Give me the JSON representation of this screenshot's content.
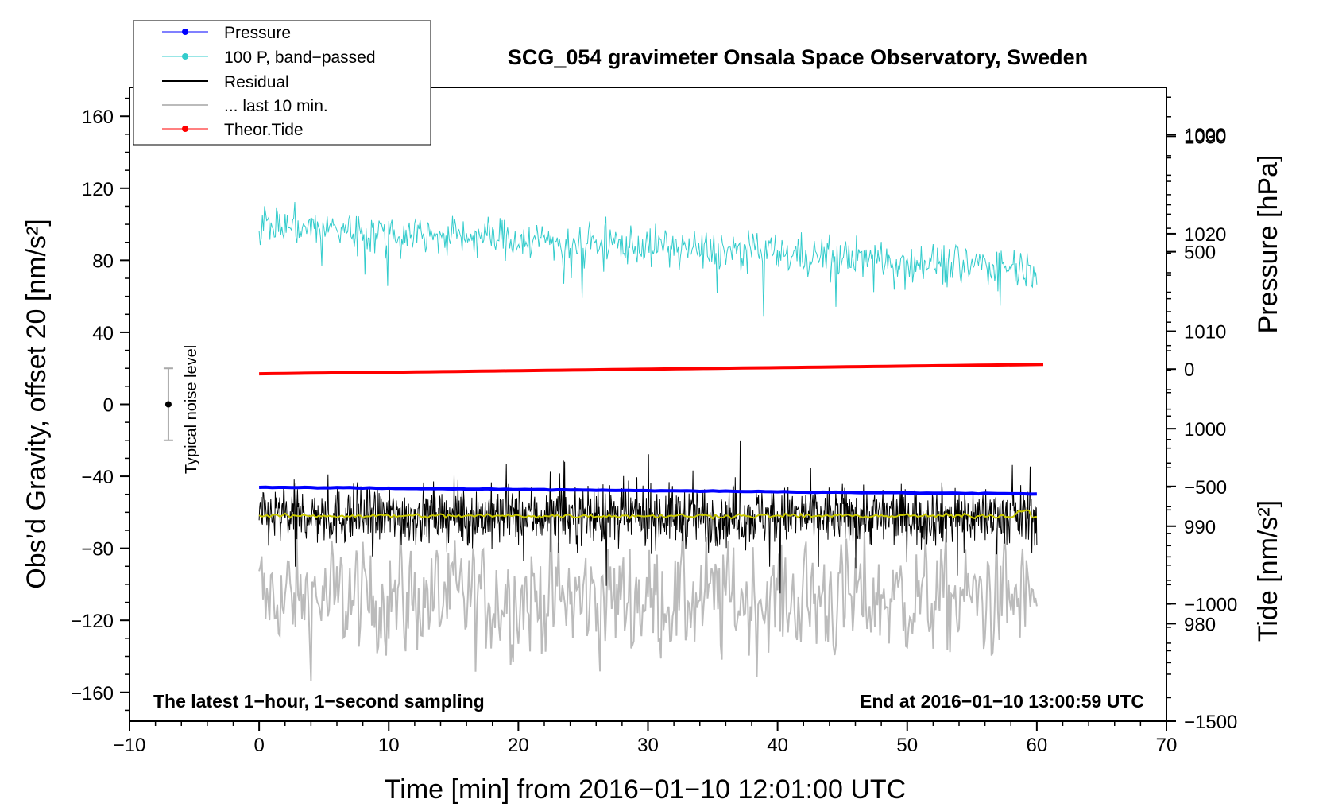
{
  "chart_data": {
    "type": "line",
    "title": "SCG_054 gravimeter Onsala Space Observatory, Sweden",
    "xlabel": "Time [min] from 2016−01−10 12:01:00 UTC",
    "ylabel_left": "Obs’d Gravity, offset 20 [nm/s²]",
    "ylabel_right_top": "Pressure [hPa]",
    "ylabel_right_bottom": "Tide [nm/s²]",
    "xlim": [
      -10,
      70
    ],
    "ylim_left": [
      -176,
      176
    ],
    "ylim_pressure": [
      970,
      1035
    ],
    "ylim_tide": [
      -1500,
      1200
    ],
    "x_ticks": [
      "−10",
      "0",
      "10",
      "20",
      "30",
      "40",
      "50",
      "60",
      "70"
    ],
    "x_tick_values": [
      -10,
      0,
      10,
      20,
      30,
      40,
      50,
      60,
      70
    ],
    "y_left_ticks": [
      "160",
      "120",
      "80",
      "40",
      "0",
      "−40",
      "−80",
      "−120",
      "−160"
    ],
    "y_left_tick_values": [
      160,
      120,
      80,
      40,
      0,
      -40,
      -80,
      -120,
      -160
    ],
    "y_pressure_ticks": [
      "1030",
      "1020",
      "1010",
      "1000",
      "990",
      "980"
    ],
    "y_pressure_tick_values": [
      1030,
      1020,
      1010,
      1000,
      990,
      980
    ],
    "y_tide_ticks": [
      "1000",
      "500",
      "0",
      "−500",
      "−1000",
      "−1500"
    ],
    "y_tide_tick_values": [
      1000,
      500,
      0,
      -500,
      -1000,
      -1500
    ],
    "note_left": "The latest 1−hour, 1−second sampling",
    "note_right": "End at 2016−01−10 13:00:59 UTC",
    "noise_label": "Typical noise level",
    "noise_bar": {
      "x": -7,
      "center": 0,
      "half_range": 20
    },
    "legend": [
      {
        "label": "Pressure",
        "color": "#0000ff",
        "marker": true
      },
      {
        "label": "100 P, band−passed",
        "color": "#33cccc",
        "marker": true
      },
      {
        "label": "Residual",
        "color": "#000000",
        "marker": false
      },
      {
        "label": "... last 10 min.",
        "color": "#bbbbbb",
        "marker": false
      },
      {
        "label": "Theor.Tide",
        "color": "#ff0000",
        "marker": true
      }
    ],
    "series": [
      {
        "name": "Pressure",
        "axis": "pressure",
        "color": "#0000ff",
        "start": 994.0,
        "end": 993.3
      },
      {
        "name": "100 P, band−passed",
        "axis": "left",
        "color": "#33cccc",
        "start_mean": 100,
        "end_mean": 76,
        "noise_amplitude": 10
      },
      {
        "name": "Residual",
        "axis": "left",
        "color": "#000000",
        "mean": -62,
        "noise_amplitude": 15
      },
      {
        "name": "Residual smoothed",
        "axis": "left",
        "color": "#c8c800",
        "mean": -62
      },
      {
        "name": "... last 10 min.",
        "axis": "left",
        "color": "#bbbbbb",
        "mean": -108,
        "noise_amplitude": 18
      },
      {
        "name": "Theor.Tide",
        "axis": "tide",
        "color": "#ff0000",
        "start": -20,
        "end": 20
      }
    ]
  }
}
